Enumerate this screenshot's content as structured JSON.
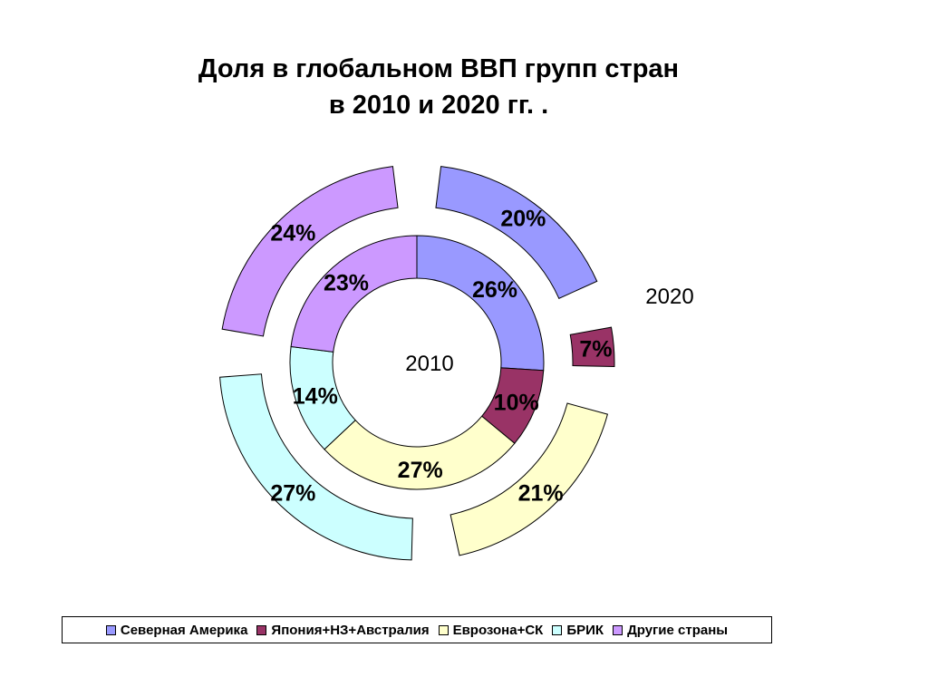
{
  "title": {
    "line1": "Доля в глобальном ВВП групп стран",
    "line2": "в 2010 и 2020 гг. ."
  },
  "chart_data": {
    "type": "doughnut",
    "categories": [
      "Северная Америка",
      "Япония+НЗ+Австралия",
      "Еврозона+СК",
      "БРИК",
      "Другие страны"
    ],
    "colors": [
      "#9999ff",
      "#993366",
      "#ffffcc",
      "#ccffff",
      "#cc99ff"
    ],
    "series": [
      {
        "name": "2010",
        "values": [
          26,
          10,
          27,
          14,
          23
        ],
        "labels": [
          "26%",
          "10%",
          "27%",
          "14%",
          "23%"
        ]
      },
      {
        "name": "2020",
        "values": [
          20,
          7,
          21,
          27,
          24
        ],
        "labels": [
          "20%",
          "7%",
          "21%",
          "27%",
          "24%"
        ]
      }
    ],
    "legend_position": "bottom"
  }
}
